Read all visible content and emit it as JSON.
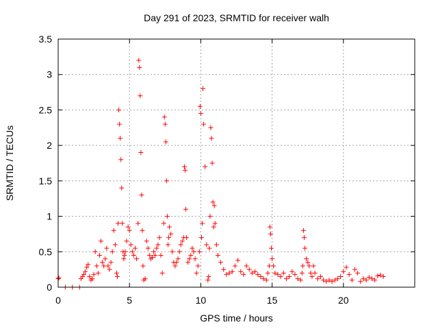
{
  "chart_data": {
    "type": "scatter",
    "title": "Day 291 of 2023, SRMTID for receiver walh",
    "xlabel": "GPS time / hours",
    "ylabel": "SRMTID / TECUs",
    "xlim": [
      0,
      25
    ],
    "ylim": [
      0,
      3.5
    ],
    "xticks": [
      0,
      5,
      10,
      15,
      20
    ],
    "xtick_labels": [
      "0",
      "5",
      "10",
      "15",
      "20"
    ],
    "yticks": [
      0,
      0.5,
      1,
      1.5,
      2,
      2.5,
      3,
      3.5
    ],
    "ytick_labels": [
      "0",
      "0.5",
      "1",
      "1.5",
      "2",
      "2.5",
      "3",
      "3.5"
    ],
    "grid": true,
    "marker": "+",
    "color": "#ff0000",
    "series": [
      {
        "name": "SRMTID",
        "x": [
          0.0,
          0.05,
          0.5,
          1.0,
          1.5,
          1.6,
          1.7,
          1.8,
          1.9,
          2.0,
          2.1,
          2.2,
          2.3,
          2.4,
          2.5,
          2.6,
          2.7,
          2.8,
          2.9,
          3.0,
          3.1,
          3.2,
          3.3,
          3.4,
          3.5,
          3.6,
          3.7,
          3.8,
          3.9,
          4.0,
          4.1,
          4.15,
          4.2,
          4.25,
          4.3,
          4.35,
          4.4,
          4.45,
          4.5,
          4.55,
          4.6,
          4.65,
          4.7,
          4.8,
          4.9,
          5.0,
          5.1,
          5.2,
          5.3,
          5.4,
          5.5,
          5.6,
          5.65,
          5.7,
          5.75,
          5.8,
          5.85,
          5.9,
          5.95,
          6.0,
          6.1,
          6.2,
          6.3,
          6.4,
          6.5,
          6.6,
          6.7,
          6.8,
          6.9,
          7.0,
          7.1,
          7.2,
          7.3,
          7.4,
          7.45,
          7.5,
          7.55,
          7.6,
          7.65,
          7.7,
          7.75,
          7.8,
          7.9,
          8.0,
          8.1,
          8.2,
          8.3,
          8.4,
          8.5,
          8.6,
          8.7,
          8.8,
          8.85,
          8.9,
          8.95,
          9.0,
          9.1,
          9.2,
          9.3,
          9.4,
          9.5,
          9.6,
          9.7,
          9.8,
          9.9,
          9.95,
          10.0,
          10.05,
          10.1,
          10.15,
          10.2,
          10.3,
          10.4,
          10.5,
          10.55,
          10.6,
          10.65,
          10.7,
          10.75,
          10.8,
          10.85,
          10.9,
          10.95,
          11.0,
          11.1,
          11.2,
          11.4,
          11.6,
          11.8,
          12.0,
          12.2,
          12.4,
          12.6,
          12.8,
          13.0,
          13.2,
          13.4,
          13.6,
          13.8,
          14.0,
          14.2,
          14.4,
          14.6,
          14.7,
          14.8,
          14.85,
          14.9,
          14.95,
          15.0,
          15.1,
          15.2,
          15.4,
          15.6,
          15.8,
          16.0,
          16.2,
          16.4,
          16.6,
          16.8,
          17.0,
          17.1,
          17.15,
          17.2,
          17.25,
          17.3,
          17.4,
          17.5,
          17.6,
          17.7,
          17.8,
          17.9,
          18.0,
          18.2,
          18.4,
          18.6,
          18.8,
          19.0,
          19.2,
          19.4,
          19.6,
          19.8,
          20.0,
          20.2,
          20.4,
          20.6,
          20.8,
          21.0,
          21.2,
          21.4,
          21.6,
          21.8,
          22.0,
          22.2,
          22.4,
          22.6,
          22.8
        ],
        "y": [
          0.12,
          0.13,
          0.0,
          0.0,
          0.0,
          0.12,
          0.15,
          0.18,
          0.22,
          0.28,
          0.32,
          0.15,
          0.1,
          0.12,
          0.18,
          0.5,
          0.3,
          0.2,
          0.45,
          0.65,
          0.35,
          0.3,
          0.4,
          0.55,
          0.3,
          0.25,
          0.35,
          0.5,
          0.8,
          0.6,
          0.2,
          0.15,
          0.9,
          2.5,
          2.3,
          2.1,
          1.8,
          1.4,
          0.9,
          0.5,
          0.4,
          0.45,
          0.5,
          0.65,
          0.85,
          0.8,
          0.6,
          0.5,
          0.45,
          0.55,
          0.4,
          0.9,
          3.2,
          3.1,
          2.7,
          1.9,
          1.3,
          0.8,
          0.3,
          0.1,
          0.12,
          0.65,
          0.55,
          0.45,
          0.4,
          0.42,
          0.5,
          0.45,
          0.55,
          0.6,
          0.7,
          0.45,
          0.2,
          0.9,
          2.4,
          2.3,
          2.05,
          1.5,
          1.0,
          0.6,
          0.7,
          0.85,
          0.75,
          0.5,
          0.35,
          0.3,
          0.35,
          0.4,
          0.5,
          0.6,
          0.65,
          0.7,
          1.7,
          1.65,
          1.1,
          0.7,
          0.35,
          0.4,
          0.45,
          0.55,
          0.5,
          0.4,
          0.2,
          0.3,
          0.5,
          2.55,
          2.45,
          0.7,
          0.9,
          2.8,
          2.3,
          1.7,
          0.6,
          0.1,
          0.15,
          0.55,
          1.0,
          2.25,
          2.1,
          1.75,
          1.2,
          0.85,
          1.15,
          0.9,
          0.6,
          0.45,
          0.35,
          0.25,
          0.18,
          0.2,
          0.22,
          0.3,
          0.38,
          0.22,
          0.18,
          0.3,
          0.25,
          0.2,
          0.22,
          0.18,
          0.15,
          0.12,
          0.1,
          0.2,
          0.3,
          0.85,
          0.75,
          0.55,
          0.4,
          0.3,
          0.2,
          0.18,
          0.15,
          0.2,
          0.12,
          0.15,
          0.22,
          0.18,
          0.12,
          0.1,
          0.2,
          0.3,
          0.8,
          0.7,
          0.55,
          0.4,
          0.35,
          0.3,
          0.2,
          0.15,
          0.3,
          0.2,
          0.12,
          0.15,
          0.1,
          0.08,
          0.1,
          0.08,
          0.1,
          0.12,
          0.15,
          0.22,
          0.28,
          0.18,
          0.1,
          0.25,
          0.2,
          0.08,
          0.12,
          0.1,
          0.14,
          0.12,
          0.1,
          0.16,
          0.17,
          0.15
        ]
      }
    ]
  }
}
